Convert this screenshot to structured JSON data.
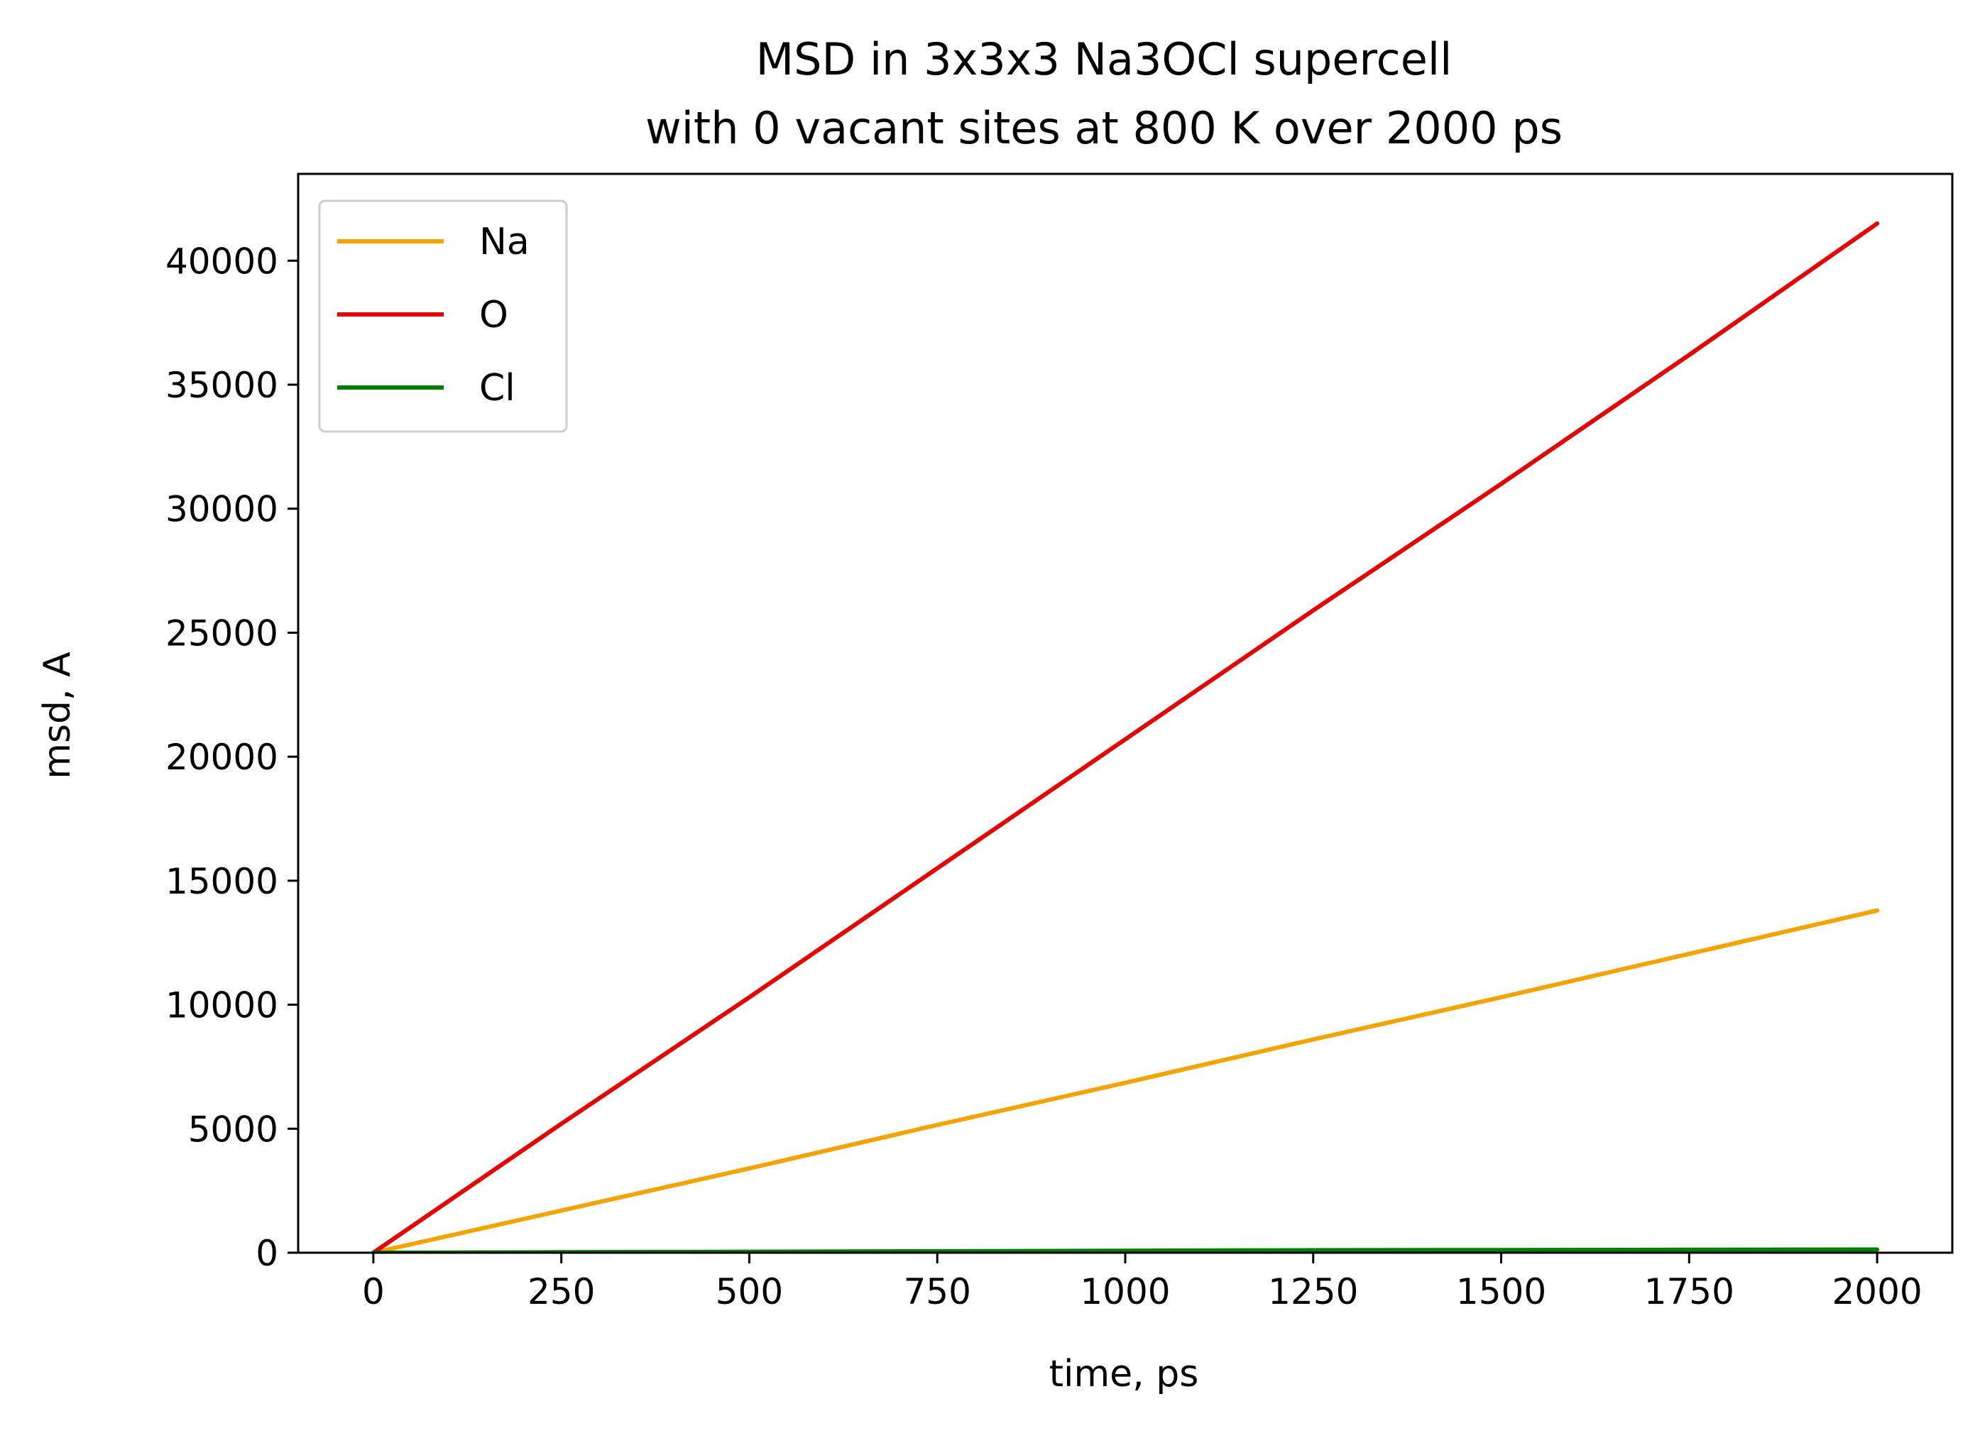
{
  "chart_data": {
    "type": "line",
    "title": "MSD in 3x3x3 Na3OCl supercell",
    "subtitle": "with 0 vacant sites at 800 K over 2000 ps",
    "xlabel": "time, ps",
    "ylabel": "msd, A",
    "xlim": [
      -100,
      2100
    ],
    "ylim": [
      0,
      43500
    ],
    "xticks": [
      0,
      250,
      500,
      750,
      1000,
      1250,
      1500,
      1750,
      2000
    ],
    "yticks": [
      0,
      5000,
      10000,
      15000,
      20000,
      25000,
      30000,
      35000,
      40000
    ],
    "grid": false,
    "legend_position": "upper-left",
    "x": [
      0,
      250,
      500,
      750,
      1000,
      1250,
      1500,
      1750,
      2000
    ],
    "series": [
      {
        "name": "Na",
        "color": "#f5a300",
        "values": [
          0,
          1700,
          3400,
          5150,
          6850,
          8600,
          10300,
          12050,
          13800
        ]
      },
      {
        "name": "O",
        "color": "#e60000",
        "values": [
          0,
          5200,
          10300,
          15500,
          20700,
          25900,
          31000,
          36200,
          41500
        ]
      },
      {
        "name": "Cl",
        "color": "#008000",
        "values": [
          0,
          20,
          40,
          60,
          80,
          100,
          110,
          120,
          130
        ]
      }
    ]
  }
}
